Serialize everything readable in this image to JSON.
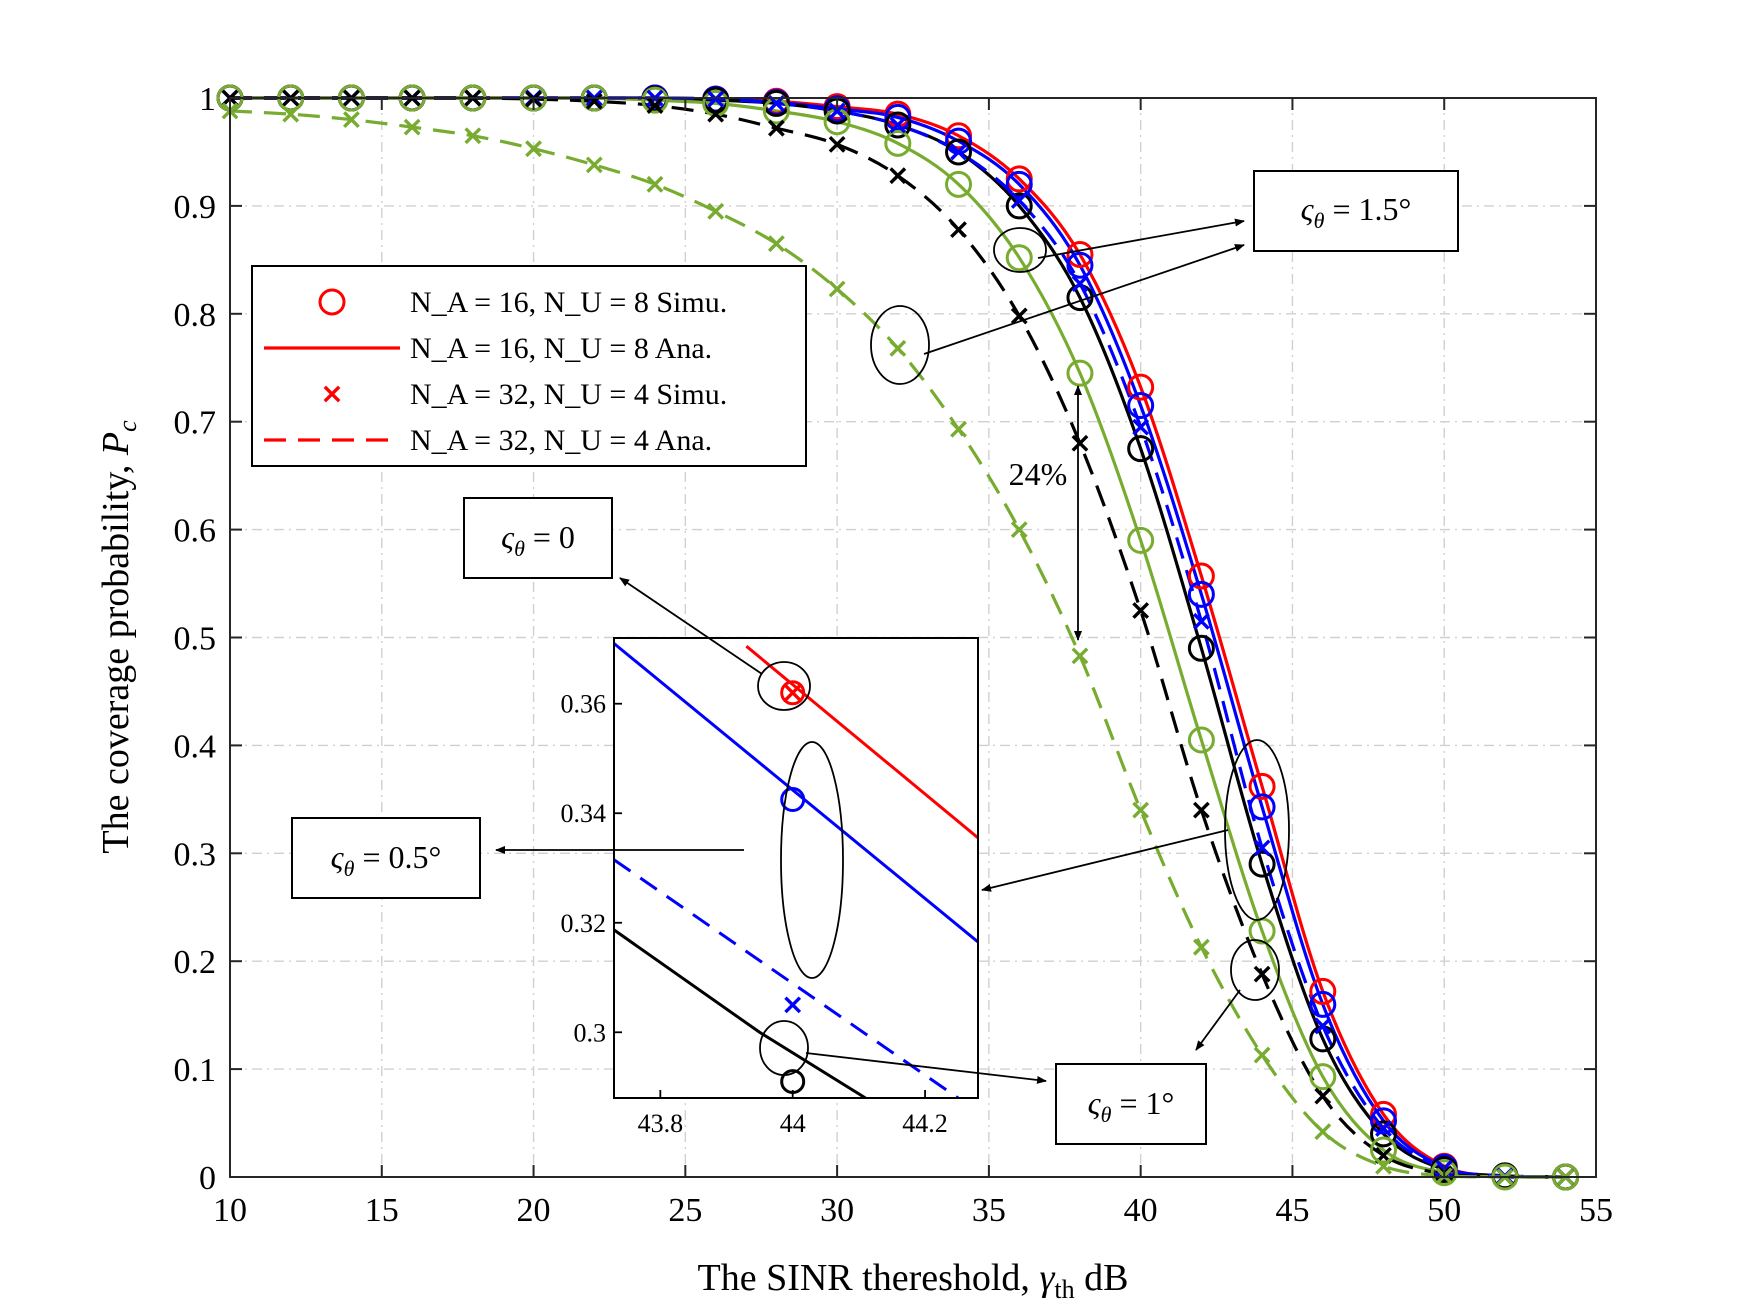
{
  "chart_data": {
    "type": "line",
    "xlabel": "The SINR thereshold, γ_th dB",
    "xlabel_main": "The SINR thereshold, ",
    "xlabel_sym": "γ",
    "xlabel_sub": "th",
    "xlabel_unit": " dB",
    "ylabel": "The coverage probability, P_c",
    "ylabel_main": "The coverage probability, ",
    "ylabel_sym": "P",
    "ylabel_sub": "c",
    "xlim": [
      10,
      55
    ],
    "ylim": [
      0,
      1
    ],
    "xticks": [
      10,
      15,
      20,
      25,
      30,
      35,
      40,
      45,
      50,
      55
    ],
    "yticks": [
      0,
      0.1,
      0.2,
      0.3,
      0.4,
      0.5,
      0.6,
      0.7,
      0.8,
      0.9,
      1
    ],
    "xtick_labels": [
      "10",
      "15",
      "20",
      "25",
      "30",
      "35",
      "40",
      "45",
      "50",
      "55"
    ],
    "ytick_labels": [
      "0",
      "0.1",
      "0.2",
      "0.3",
      "0.4",
      "0.5",
      "0.6",
      "0.7",
      "0.8",
      "0.9",
      "1"
    ],
    "grid": true,
    "legend_position": "upper-left",
    "legend": [
      {
        "label": "N_A = 16, N_U = 8 Simu.",
        "sample": "circle",
        "color": "#ff0000"
      },
      {
        "label": "N_A = 16, N_U = 8 Ana.",
        "sample": "solid",
        "color": "#ff0000"
      },
      {
        "label": "N_A = 32, N_U = 4 Simu.",
        "sample": "cross",
        "color": "#ff0000"
      },
      {
        "label": "N_A = 32, N_U = 4 Ana.",
        "sample": "dashed",
        "color": "#ff0000"
      }
    ],
    "x": [
      10,
      12,
      14,
      16,
      18,
      20,
      22,
      24,
      26,
      28,
      30,
      32,
      34,
      36,
      38,
      40,
      42,
      44,
      46,
      48,
      50,
      52,
      54
    ],
    "series": [
      {
        "color": "#ff0000",
        "style": "solid",
        "marker": "circle",
        "values": [
          1,
          1,
          1,
          1,
          1,
          1,
          1,
          1,
          0.999,
          0.997,
          0.992,
          0.985,
          0.965,
          0.925,
          0.855,
          0.732,
          0.557,
          0.362,
          0.172,
          0.058,
          0.01,
          0.001,
          0
        ]
      },
      {
        "color": "#0000ff",
        "style": "solid",
        "marker": "circle",
        "values": [
          1,
          1,
          1,
          1,
          1,
          1,
          1,
          1,
          0.999,
          0.996,
          0.99,
          0.982,
          0.96,
          0.92,
          0.845,
          0.715,
          0.54,
          0.343,
          0.16,
          0.052,
          0.009,
          0.001,
          0
        ]
      },
      {
        "color": "#000000",
        "style": "solid",
        "marker": "circle",
        "values": [
          1,
          1,
          1,
          1,
          1,
          1,
          1,
          0.999,
          0.998,
          0.995,
          0.988,
          0.975,
          0.95,
          0.9,
          0.815,
          0.675,
          0.49,
          0.29,
          0.128,
          0.04,
          0.007,
          0.001,
          0
        ]
      },
      {
        "color": "#77ac30",
        "style": "solid",
        "marker": "circle",
        "values": [
          1,
          1,
          1,
          1,
          1,
          1,
          1,
          0.998,
          0.995,
          0.988,
          0.978,
          0.958,
          0.92,
          0.852,
          0.745,
          0.59,
          0.405,
          0.228,
          0.093,
          0.025,
          0.004,
          0,
          0
        ]
      },
      {
        "color": "#0000ff",
        "style": "dashed",
        "marker": "cross",
        "values": [
          1,
          1,
          1,
          1,
          1,
          1,
          1,
          1,
          0.999,
          0.995,
          0.988,
          0.975,
          0.95,
          0.905,
          0.828,
          0.695,
          0.515,
          0.305,
          0.14,
          0.045,
          0.008,
          0.001,
          0
        ]
      },
      {
        "color": "#000000",
        "style": "dashed",
        "marker": "cross",
        "values": [
          1,
          1,
          1,
          1,
          1,
          0.999,
          0.997,
          0.993,
          0.985,
          0.972,
          0.957,
          0.928,
          0.878,
          0.798,
          0.68,
          0.525,
          0.34,
          0.188,
          0.075,
          0.02,
          0.003,
          0,
          0
        ]
      },
      {
        "color": "#77ac30",
        "style": "dashed",
        "marker": "cross",
        "values": [
          0.988,
          0.985,
          0.98,
          0.973,
          0.965,
          0.953,
          0.938,
          0.92,
          0.895,
          0.865,
          0.823,
          0.768,
          0.693,
          0.6,
          0.483,
          0.34,
          0.213,
          0.113,
          0.042,
          0.01,
          0.001,
          0,
          0
        ]
      }
    ],
    "inset": {
      "xlim": [
        43.73,
        44.28
      ],
      "ylim": [
        0.288,
        0.372
      ],
      "xticks": [
        43.8,
        44,
        44.2
      ],
      "yticks": [
        0.3,
        0.32,
        0.34,
        0.36
      ],
      "xtick_labels": [
        "43.8",
        "44",
        "44.2"
      ],
      "ytick_labels": [
        "0.3",
        "0.32",
        "0.34",
        "0.36"
      ],
      "segments": [
        {
          "color": "#ff0000",
          "style": "solid",
          "points": [
            [
              43.93,
              0.3705
            ],
            [
              44.28,
              0.3355
            ]
          ]
        },
        {
          "color": "#0000ff",
          "style": "solid",
          "points": [
            [
              43.73,
              0.371
            ],
            [
              44.28,
              0.3165
            ]
          ]
        },
        {
          "color": "#0000ff",
          "style": "dashed",
          "points": [
            [
              43.73,
              0.3315
            ],
            [
              44.25,
              0.288
            ]
          ]
        },
        {
          "color": "#000000",
          "style": "solid",
          "points": [
            [
              43.73,
              0.3187
            ],
            [
              43.95,
              0.3
            ],
            [
              44.11,
              0.288
            ]
          ]
        }
      ],
      "markers": [
        {
          "x": 44,
          "y": 0.362,
          "shape": "circle",
          "color": "#ff0000"
        },
        {
          "x": 44,
          "y": 0.362,
          "shape": "cross",
          "color": "#ff0000"
        },
        {
          "x": 44,
          "y": 0.3425,
          "shape": "circle",
          "color": "#0000ff"
        },
        {
          "x": 44,
          "y": 0.305,
          "shape": "cross",
          "color": "#0000ff"
        },
        {
          "x": 44,
          "y": 0.291,
          "shape": "circle",
          "color": "#000000"
        }
      ]
    },
    "annotations": [
      {
        "label": "ς_θ = 1.5°",
        "sym": "ς",
        "sub": "θ",
        "value": " = 1.5°"
      },
      {
        "label": "ς_θ = 0",
        "sym": "ς",
        "sub": "θ",
        "value": " = 0"
      },
      {
        "label": "ς_θ = 0.5°",
        "sym": "ς",
        "sub": "θ",
        "value": " = 0.5°"
      },
      {
        "label": "ς_θ = 1°",
        "sym": "ς",
        "sub": "θ",
        "value": " = 1°"
      },
      {
        "label": "24%",
        "value": "24%"
      }
    ]
  }
}
